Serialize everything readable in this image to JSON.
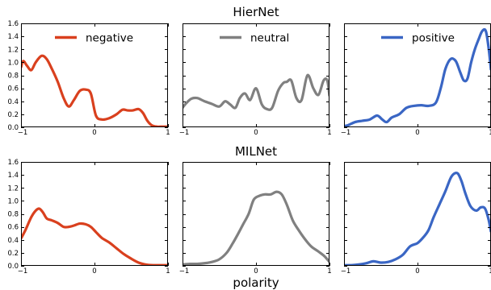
{
  "chart_data": {
    "type": "line",
    "xlabel": "polarity",
    "xlim": [
      -1,
      1
    ],
    "ylim": [
      0.0,
      1.6
    ],
    "x_ticks": [
      "-1",
      "0",
      "1"
    ],
    "y_ticks": [
      "0.0",
      "0.2",
      "0.4",
      "0.6",
      "0.8",
      "1.0",
      "1.2",
      "1.4",
      "1.6"
    ],
    "colors": {
      "negative": "#d9401e",
      "neutral": "#808080",
      "positive": "#3a66c4"
    },
    "rows": [
      {
        "title": "HierNet",
        "panels": [
          {
            "series": "negative",
            "legend": "negative",
            "x": [
              -1,
              -0.97,
              -0.92,
              -0.86,
              -0.8,
              -0.72,
              -0.65,
              -0.58,
              -0.5,
              -0.42,
              -0.35,
              -0.28,
              -0.2,
              -0.12,
              -0.05,
              0.02,
              0.1,
              0.2,
              0.3,
              0.38,
              0.45,
              0.52,
              0.6,
              0.66,
              0.72,
              0.78,
              0.85,
              0.92,
              1
            ],
            "y": [
              0.92,
              1.02,
              0.95,
              0.88,
              1.0,
              1.1,
              1.05,
              0.9,
              0.7,
              0.45,
              0.32,
              0.42,
              0.56,
              0.58,
              0.52,
              0.18,
              0.12,
              0.14,
              0.2,
              0.27,
              0.26,
              0.26,
              0.28,
              0.22,
              0.1,
              0.03,
              0.01,
              0.01,
              0.01
            ]
          },
          {
            "series": "neutral",
            "legend": "neutral",
            "x": [
              -1,
              -0.95,
              -0.88,
              -0.8,
              -0.7,
              -0.6,
              -0.5,
              -0.42,
              -0.35,
              -0.28,
              -0.22,
              -0.15,
              -0.08,
              0,
              0.08,
              0.15,
              0.22,
              0.3,
              0.37,
              0.42,
              0.48,
              0.55,
              0.62,
              0.7,
              0.78,
              0.85,
              0.92,
              0.97,
              1
            ],
            "y": [
              0.3,
              0.37,
              0.44,
              0.45,
              0.4,
              0.36,
              0.32,
              0.4,
              0.35,
              0.3,
              0.45,
              0.52,
              0.42,
              0.6,
              0.35,
              0.28,
              0.3,
              0.56,
              0.68,
              0.7,
              0.72,
              0.45,
              0.42,
              0.8,
              0.6,
              0.5,
              0.72,
              0.72,
              0.48
            ]
          },
          {
            "series": "positive",
            "legend": "positive",
            "x": [
              -1,
              -0.95,
              -0.85,
              -0.75,
              -0.65,
              -0.55,
              -0.48,
              -0.42,
              -0.35,
              -0.25,
              -0.15,
              -0.05,
              0.05,
              0.15,
              0.25,
              0.32,
              0.38,
              0.45,
              0.52,
              0.58,
              0.63,
              0.68,
              0.73,
              0.78,
              0.83,
              0.88,
              0.93,
              0.97,
              1
            ],
            "y": [
              0.02,
              0.03,
              0.08,
              0.1,
              0.12,
              0.18,
              0.12,
              0.08,
              0.15,
              0.2,
              0.3,
              0.33,
              0.34,
              0.33,
              0.38,
              0.62,
              0.9,
              1.05,
              1.02,
              0.85,
              0.72,
              0.75,
              1.0,
              1.2,
              1.35,
              1.48,
              1.48,
              1.2,
              0.88
            ]
          }
        ]
      },
      {
        "title": "MILNet",
        "panels": [
          {
            "series": "negative",
            "x": [
              -1,
              -0.94,
              -0.86,
              -0.8,
              -0.75,
              -0.7,
              -0.65,
              -0.58,
              -0.5,
              -0.42,
              -0.35,
              -0.28,
              -0.2,
              -0.12,
              -0.05,
              0.02,
              0.1,
              0.2,
              0.3,
              0.4,
              0.5,
              0.6,
              0.7,
              0.8,
              0.9,
              1
            ],
            "y": [
              0.42,
              0.55,
              0.75,
              0.85,
              0.88,
              0.82,
              0.73,
              0.7,
              0.66,
              0.6,
              0.6,
              0.62,
              0.65,
              0.64,
              0.6,
              0.52,
              0.43,
              0.36,
              0.27,
              0.18,
              0.11,
              0.05,
              0.02,
              0.01,
              0.01,
              0.01
            ]
          },
          {
            "series": "neutral",
            "x": [
              -1,
              -0.9,
              -0.8,
              -0.7,
              -0.6,
              -0.5,
              -0.4,
              -0.32,
              -0.25,
              -0.18,
              -0.1,
              -0.03,
              0.05,
              0.12,
              0.2,
              0.28,
              0.35,
              0.42,
              0.5,
              0.58,
              0.66,
              0.75,
              0.85,
              0.93,
              1
            ],
            "y": [
              0.02,
              0.03,
              0.03,
              0.04,
              0.06,
              0.1,
              0.2,
              0.34,
              0.48,
              0.63,
              0.8,
              1.02,
              1.08,
              1.1,
              1.1,
              1.14,
              1.1,
              0.94,
              0.7,
              0.55,
              0.42,
              0.3,
              0.22,
              0.15,
              0.06
            ]
          },
          {
            "series": "positive",
            "x": [
              -1,
              -0.9,
              -0.8,
              -0.7,
              -0.6,
              -0.5,
              -0.4,
              -0.3,
              -0.2,
              -0.1,
              0,
              0.08,
              0.15,
              0.22,
              0.3,
              0.38,
              0.45,
              0.5,
              0.55,
              0.6,
              0.65,
              0.72,
              0.8,
              0.86,
              0.92,
              0.97,
              1
            ],
            "y": [
              0.01,
              0.01,
              0.02,
              0.04,
              0.07,
              0.05,
              0.06,
              0.1,
              0.17,
              0.3,
              0.35,
              0.44,
              0.55,
              0.75,
              0.95,
              1.15,
              1.35,
              1.42,
              1.42,
              1.3,
              1.12,
              0.92,
              0.85,
              0.9,
              0.88,
              0.7,
              0.52
            ]
          }
        ]
      }
    ]
  }
}
